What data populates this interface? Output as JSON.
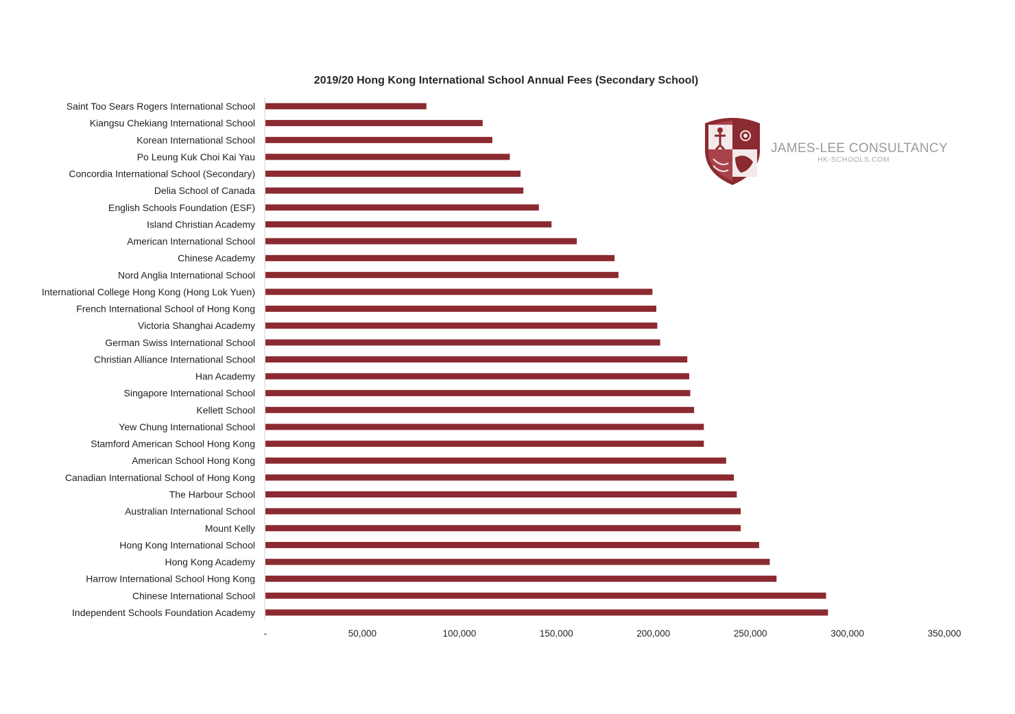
{
  "chart_data": {
    "type": "bar",
    "orientation": "horizontal",
    "title": "2019/20 Hong Kong International School Annual Fees (Secondary School)",
    "xlabel": "",
    "ylabel": "",
    "xlim": [
      0,
      350000
    ],
    "ticks": [
      0,
      50000,
      100000,
      150000,
      200000,
      250000,
      300000,
      350000
    ],
    "tick_labels": [
      "-",
      "50,000",
      "100,000",
      "150,000",
      "200,000",
      "250,000",
      "300,000",
      "350,000"
    ],
    "grid": false,
    "bar_color": "#8b2a30",
    "categories": [
      "Saint Too Sears Rogers International School",
      "Kiangsu Chekiang International School",
      "Korean International School",
      "Po Leung Kuk Choi Kai Yau",
      "Concordia International School (Secondary)",
      "Delia School of Canada",
      "English Schools Foundation (ESF)",
      "Island Christian Academy",
      "American International School",
      "Chinese Academy",
      "Nord Anglia International School",
      "International College Hong Kong (Hong Lok Yuen)",
      "French International School of Hong Kong",
      "Victoria Shanghai Academy",
      "German Swiss International School",
      "Christian Alliance International School",
      "Han Academy",
      "Singapore International School",
      "Kellett School",
      "Yew Chung International School",
      "Stamford American School Hong Kong",
      "American School Hong Kong",
      "Canadian International School of Hong Kong",
      "The Harbour School",
      "Australian International School",
      "Mount Kelly",
      "Hong Kong International School",
      "Hong Kong Academy",
      "Harrow International School Hong Kong",
      "Chinese International School",
      "Independent Schools Foundation Academy"
    ],
    "values": [
      83000,
      112000,
      117000,
      126000,
      131500,
      133000,
      141000,
      147500,
      160500,
      180000,
      182000,
      199500,
      201500,
      202000,
      203500,
      217500,
      218500,
      219000,
      221000,
      226000,
      226000,
      237500,
      241500,
      243000,
      245000,
      245000,
      254500,
      260000,
      263500,
      289000,
      290000
    ]
  },
  "watermark": {
    "name": "JAMES-LEE CONSULTANCY",
    "url": "HK-SCHOOLS.COM",
    "brand_color": "#8b2a30"
  }
}
